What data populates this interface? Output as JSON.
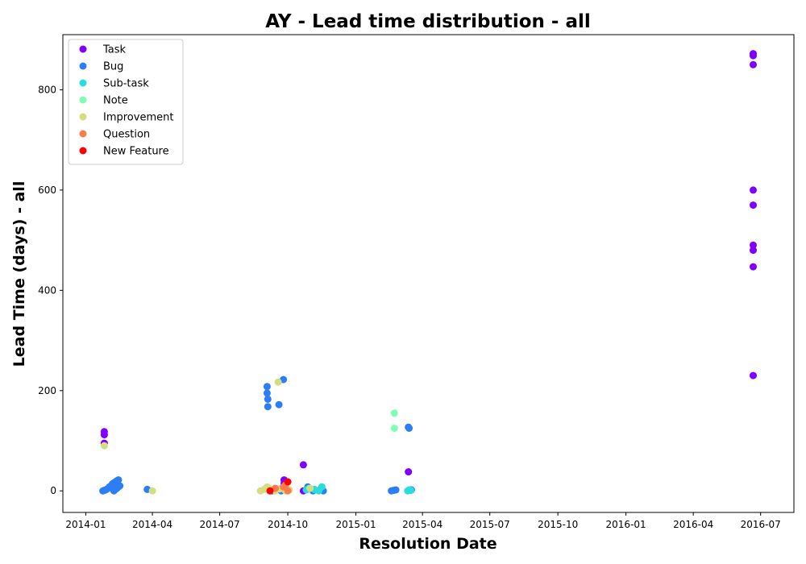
{
  "chart_data": {
    "type": "scatter",
    "title": "AY - Lead time distribution - all",
    "xlabel": "Resolution Date",
    "ylabel": "Lead Time (days) - all",
    "xlim": [
      "2013-12-01",
      "2016-08-15"
    ],
    "ylim": [
      -43,
      910
    ],
    "x_ticks": [
      "2014-01",
      "2014-04",
      "2014-07",
      "2014-10",
      "2015-01",
      "2015-04",
      "2015-07",
      "2015-10",
      "2016-01",
      "2016-04",
      "2016-07"
    ],
    "y_ticks": [
      0,
      200,
      400,
      600,
      800
    ],
    "legend_position": "top-left",
    "series": [
      {
        "name": "Task",
        "color": "#8000ff",
        "points": [
          [
            "2014-01-26",
            118
          ],
          [
            "2014-01-26",
            112
          ],
          [
            "2014-01-26",
            95
          ],
          [
            "2014-09-26",
            22
          ],
          [
            "2014-09-26",
            15
          ],
          [
            "2014-10-22",
            52
          ],
          [
            "2014-10-22",
            0
          ],
          [
            "2015-03-13",
            38
          ],
          [
            "2016-06-21",
            872
          ],
          [
            "2016-06-21",
            868
          ],
          [
            "2016-06-21",
            850
          ],
          [
            "2016-06-21",
            600
          ],
          [
            "2016-06-21",
            570
          ],
          [
            "2016-06-21",
            490
          ],
          [
            "2016-06-21",
            480
          ],
          [
            "2016-06-21",
            447
          ],
          [
            "2016-06-21",
            230
          ]
        ]
      },
      {
        "name": "Bug",
        "color": "#2c7ef7",
        "points": [
          [
            "2014-01-24",
            0
          ],
          [
            "2014-01-26",
            1
          ],
          [
            "2014-01-28",
            2
          ],
          [
            "2014-01-30",
            4
          ],
          [
            "2014-02-02",
            8
          ],
          [
            "2014-02-04",
            10
          ],
          [
            "2014-02-06",
            14
          ],
          [
            "2014-02-08",
            16
          ],
          [
            "2014-02-08",
            0
          ],
          [
            "2014-02-10",
            18
          ],
          [
            "2014-02-10",
            3
          ],
          [
            "2014-02-12",
            20
          ],
          [
            "2014-02-12",
            5
          ],
          [
            "2014-02-14",
            22
          ],
          [
            "2014-02-14",
            8
          ],
          [
            "2014-02-16",
            10
          ],
          [
            "2014-03-25",
            3
          ],
          [
            "2014-09-03",
            208
          ],
          [
            "2014-09-03",
            195
          ],
          [
            "2014-09-04",
            183
          ],
          [
            "2014-09-04",
            168
          ],
          [
            "2014-09-19",
            172
          ],
          [
            "2014-09-25",
            222
          ],
          [
            "2014-09-10",
            0
          ],
          [
            "2014-09-18",
            3
          ],
          [
            "2014-09-22",
            0
          ],
          [
            "2014-10-28",
            8
          ],
          [
            "2014-11-04",
            0
          ],
          [
            "2014-11-18",
            0
          ],
          [
            "2014-11-14",
            3
          ],
          [
            "2015-02-18",
            0
          ],
          [
            "2015-02-21",
            1
          ],
          [
            "2015-02-24",
            2
          ],
          [
            "2015-03-13",
            127
          ],
          [
            "2015-03-14",
            125
          ],
          [
            "2015-03-17",
            2
          ]
        ]
      },
      {
        "name": "Sub-task",
        "color": "#2adddd",
        "points": [
          [
            "2014-10-26",
            2
          ],
          [
            "2014-10-30",
            5
          ],
          [
            "2014-11-06",
            3
          ],
          [
            "2014-11-12",
            0
          ],
          [
            "2014-11-16",
            8
          ],
          [
            "2015-03-12",
            0
          ],
          [
            "2015-03-14",
            2
          ],
          [
            "2015-03-16",
            1
          ]
        ]
      },
      {
        "name": "Note",
        "color": "#80ffb4",
        "points": [
          [
            "2015-02-22",
            155
          ],
          [
            "2015-02-22",
            125
          ]
        ]
      },
      {
        "name": "Improvement",
        "color": "#d4dd80",
        "points": [
          [
            "2014-01-26",
            90
          ],
          [
            "2014-04-01",
            0
          ],
          [
            "2014-08-25",
            0
          ],
          [
            "2014-08-30",
            3
          ],
          [
            "2014-09-03",
            8
          ],
          [
            "2014-09-06",
            5
          ],
          [
            "2014-09-09",
            2
          ],
          [
            "2014-09-14",
            0
          ],
          [
            "2014-09-18",
            217
          ],
          [
            "2014-09-20",
            4
          ],
          [
            "2014-09-28",
            0
          ],
          [
            "2014-10-03",
            2
          ],
          [
            "2014-10-31",
            5
          ]
        ]
      },
      {
        "name": "Question",
        "color": "#ff7a4b",
        "points": [
          [
            "2014-09-14",
            5
          ],
          [
            "2014-09-25",
            8
          ],
          [
            "2014-09-28",
            12
          ],
          [
            "2014-10-01",
            0
          ]
        ]
      },
      {
        "name": "New Feature",
        "color": "#ff0000",
        "points": [
          [
            "2014-09-07",
            0
          ],
          [
            "2014-10-01",
            18
          ]
        ]
      }
    ]
  }
}
